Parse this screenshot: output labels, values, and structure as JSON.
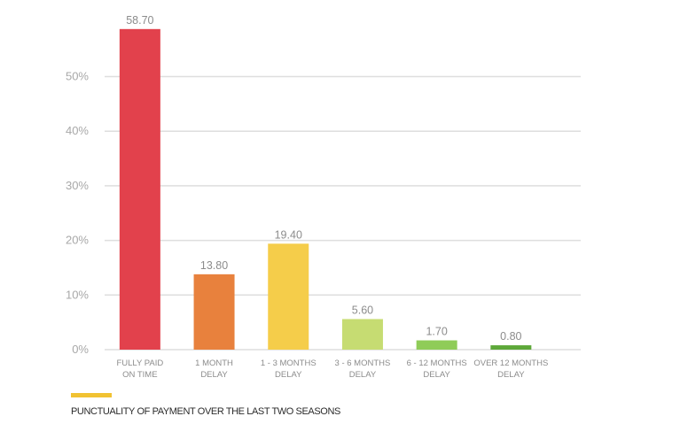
{
  "chart_data": {
    "type": "bar",
    "categories": [
      [
        "FULLY PAID",
        "ON TIME"
      ],
      [
        "1 MONTH",
        "DELAY"
      ],
      [
        "1 - 3 MONTHS",
        "DELAY"
      ],
      [
        "3 - 6 MONTHS",
        "DELAY"
      ],
      [
        "6 - 12 MONTHS",
        "DELAY"
      ],
      [
        "OVER 12 MONTHS",
        "DELAY"
      ]
    ],
    "values": [
      58.7,
      13.8,
      19.4,
      5.6,
      1.7,
      0.8
    ],
    "data_labels": [
      "58.70",
      "13.80",
      "19.40",
      "5.60",
      "1.70",
      "0.80"
    ],
    "colors": [
      "#e2414c",
      "#e8813d",
      "#f5cd4a",
      "#c6dc72",
      "#8fcc58",
      "#5ea83a"
    ],
    "yticks": [
      0,
      10,
      20,
      30,
      40,
      50
    ],
    "ytick_labels": [
      "0%",
      "10%",
      "20%",
      "30%",
      "40%",
      "50%"
    ],
    "ylim": [
      0,
      60
    ],
    "grid": true,
    "legend": {
      "label": "PUNCTUALITY OF PAYMENT OVER THE LAST TWO SEASONS",
      "color": "#f1c232",
      "placement": "bottom-left"
    }
  }
}
